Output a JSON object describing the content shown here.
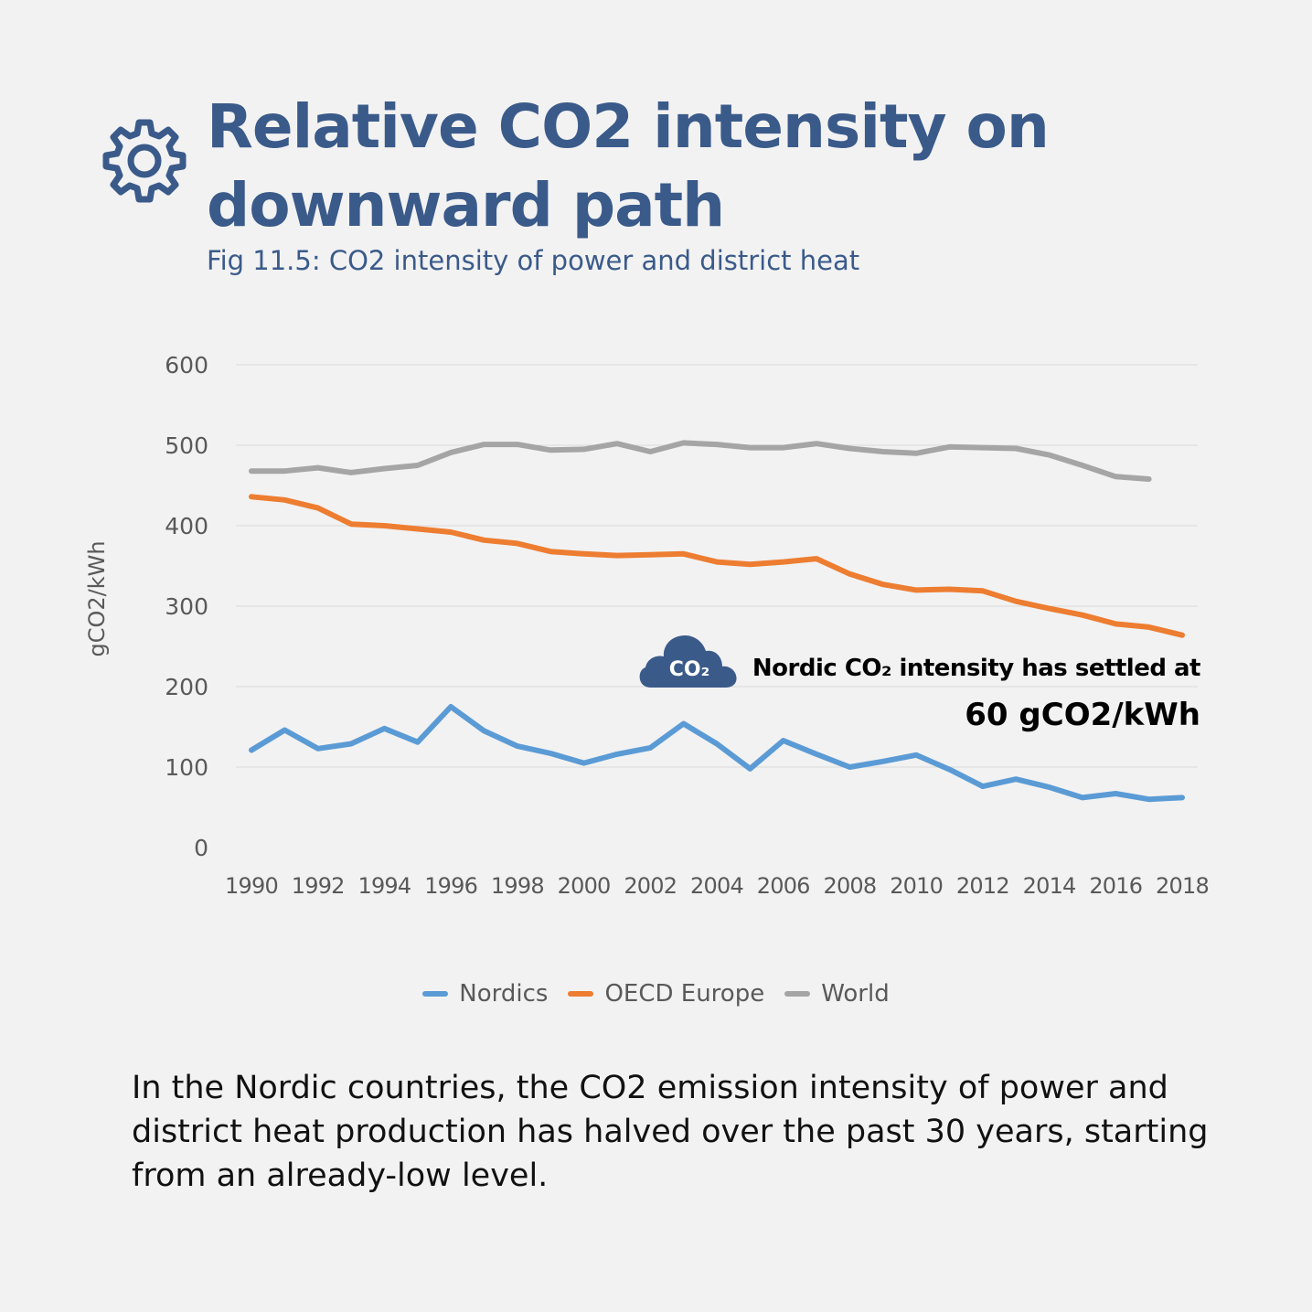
{
  "header": {
    "title": "Relative CO2 intensity on downward path",
    "subtitle": "Fig 11.5: CO2 intensity of power and district heat",
    "icon": "gear-icon"
  },
  "annotation": {
    "line1": "Nordic CO₂ intensity has settled at",
    "line2": "60 gCO2/kWh",
    "icon": "co2-cloud-icon",
    "icon_label": "CO₂"
  },
  "caption": "In the Nordic countries, the CO2 emission intensity of power and district heat production has halved over the past 30 years, starting from an already-low level.",
  "colors": {
    "title": "#3a5a8a",
    "nordics": "#5b9bd5",
    "oecd": "#ed7d31",
    "world": "#a5a5a5",
    "grid": "#d9d9d9",
    "axis_text": "#595959"
  },
  "chart_data": {
    "type": "line",
    "title": "",
    "xlabel": "",
    "ylabel": "gCO2/kWh",
    "ylim": [
      0,
      600
    ],
    "yticks": [
      0,
      100,
      200,
      300,
      400,
      500,
      600
    ],
    "xticks": [
      1990,
      1992,
      1994,
      1996,
      1998,
      2000,
      2002,
      2004,
      2006,
      2008,
      2010,
      2012,
      2014,
      2016,
      2018
    ],
    "grid": true,
    "legend_position": "bottom",
    "x": [
      1990,
      1991,
      1992,
      1993,
      1994,
      1995,
      1996,
      1997,
      1998,
      1999,
      2000,
      2001,
      2002,
      2003,
      2004,
      2005,
      2006,
      2007,
      2008,
      2009,
      2010,
      2011,
      2012,
      2013,
      2014,
      2015,
      2016,
      2017,
      2018
    ],
    "series": [
      {
        "name": "Nordics",
        "color": "#5b9bd5",
        "values": [
          121,
          146,
          123,
          129,
          148,
          131,
          175,
          145,
          126,
          117,
          105,
          116,
          124,
          154,
          129,
          98,
          133,
          116,
          100,
          107,
          115,
          97,
          76,
          85,
          75,
          62,
          67,
          60,
          62
        ]
      },
      {
        "name": "OECD Europe",
        "color": "#ed7d31",
        "values": [
          436,
          432,
          422,
          402,
          400,
          396,
          392,
          382,
          378,
          368,
          365,
          363,
          364,
          365,
          355,
          352,
          355,
          359,
          340,
          327,
          320,
          321,
          319,
          306,
          297,
          289,
          278,
          274,
          264
        ]
      },
      {
        "name": "World",
        "color": "#a5a5a5",
        "values": [
          468,
          468,
          472,
          466,
          471,
          475,
          491,
          501,
          501,
          494,
          495,
          502,
          492,
          503,
          501,
          497,
          497,
          502,
          496,
          492,
          490,
          498,
          497,
          496,
          488,
          475,
          461,
          458,
          null
        ]
      }
    ]
  }
}
